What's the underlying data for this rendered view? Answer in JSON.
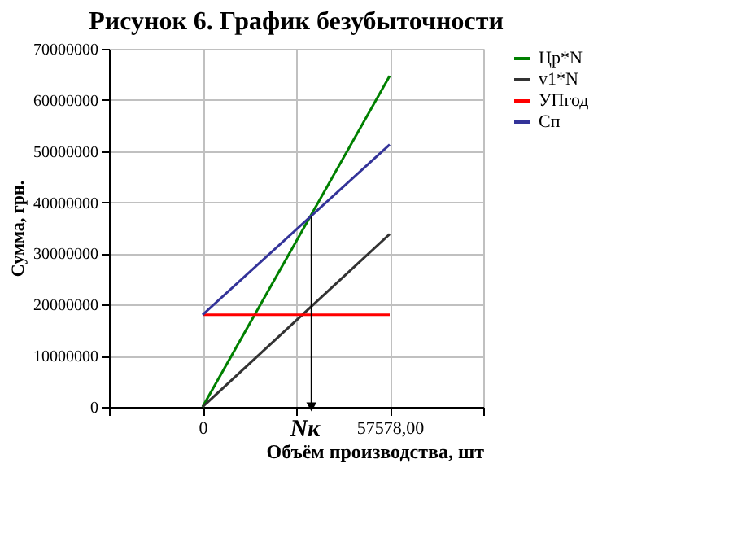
{
  "chart_data": {
    "type": "line",
    "title": "Рисунок 6. График безубыточности",
    "xlabel": "Объём производства, шт",
    "ylabel": "Сумма, грн.",
    "x": [
      0,
      57578
    ],
    "series": [
      {
        "name": "Цр*N",
        "color": "#008000",
        "values": [
          0,
          64700000
        ]
      },
      {
        "name": "v1*N",
        "color": "#333333",
        "values": [
          0,
          33800000
        ]
      },
      {
        "name": "УПгод",
        "color": "#ff0000",
        "values": [
          18000000,
          18000000
        ]
      },
      {
        "name": "Сп",
        "color": "#333399",
        "values": [
          18000000,
          51300000
        ]
      }
    ],
    "xlim": [
      -28789,
      86367
    ],
    "xticks": [
      {
        "value": -28789,
        "label": null
      },
      0,
      {
        "value": 28789,
        "label": null
      },
      {
        "value": 57578,
        "label": "57578,00"
      },
      {
        "value": 86367,
        "label": null
      }
    ],
    "ylim": [
      0,
      70000000
    ],
    "yticks": [
      0,
      10000000,
      20000000,
      30000000,
      40000000,
      50000000,
      60000000,
      70000000
    ],
    "annotations": [
      {
        "text": "Nк",
        "x": 33500,
        "y": 37200000
      }
    ],
    "grid": true,
    "legend": "right",
    "marker": "none",
    "line_style": "solid"
  }
}
